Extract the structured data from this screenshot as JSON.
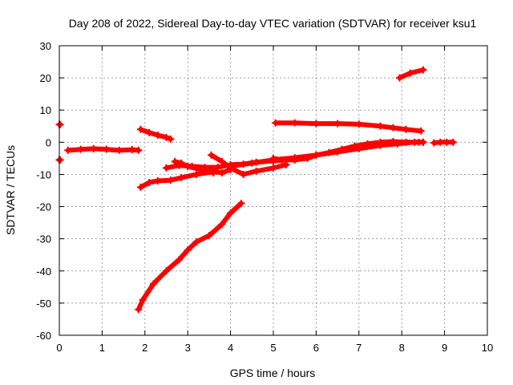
{
  "chart_data": {
    "type": "scatter",
    "title": "Day 208 of 2022, Sidereal Day-to-day VTEC variation (SDTVAR) for receiver ksu1",
    "xlabel": "GPS time / hours",
    "ylabel": "SDTVAR / TECUs",
    "xlim": [
      0,
      10
    ],
    "ylim": [
      -60,
      30
    ],
    "x_ticks": [
      "0",
      "1",
      "2",
      "3",
      "4",
      "5",
      "6",
      "7",
      "8",
      "9",
      "10"
    ],
    "y_ticks": [
      "-60",
      "-50",
      "-40",
      "-30",
      "-20",
      "-10",
      "0",
      "10",
      "20",
      "30"
    ],
    "grid": true,
    "marker": "plus",
    "color": "#ff0000",
    "series": [
      {
        "x": [
          0.0,
          0.02
        ],
        "y": [
          5.5,
          5.5
        ]
      },
      {
        "x": [
          0.0,
          0.02
        ],
        "y": [
          -5.5,
          -5.5
        ]
      },
      {
        "x": [
          0.2,
          0.5,
          0.8,
          1.1,
          1.4,
          1.7,
          1.85
        ],
        "y": [
          -2.5,
          -2.2,
          -2.0,
          -2.2,
          -2.5,
          -2.3,
          -2.5
        ]
      },
      {
        "x": [
          1.9,
          2.1,
          2.3,
          2.5,
          2.6
        ],
        "y": [
          4.0,
          3.0,
          2.2,
          1.5,
          1.0
        ]
      },
      {
        "x": [
          1.9,
          2.1,
          2.3,
          2.6,
          2.85,
          3.2,
          3.6,
          3.8,
          4.0
        ],
        "y": [
          -14.0,
          -12.5,
          -12.0,
          -11.8,
          -11.0,
          -10.0,
          -9.2,
          -9.5,
          -8.5
        ]
      },
      {
        "x": [
          1.85,
          1.95,
          2.2,
          2.5,
          2.8,
          3.0,
          3.2,
          3.5,
          3.8,
          4.0,
          4.25
        ],
        "y": [
          -52.0,
          -49.0,
          -44.0,
          -40.0,
          -36.5,
          -33.5,
          -31.0,
          -29.0,
          -25.5,
          -22.0,
          -19.0
        ]
      },
      {
        "x": [
          2.5,
          2.8,
          3.1,
          3.4,
          3.7,
          4.0,
          4.3,
          4.6,
          5.0,
          5.3
        ],
        "y": [
          -8.0,
          -7.2,
          -7.5,
          -7.8,
          -7.8,
          -7.0,
          -6.8,
          -6.2,
          -5.8,
          -5.5
        ]
      },
      {
        "x": [
          2.7,
          2.85,
          3.0,
          3.3,
          3.6
        ],
        "y": [
          -6.0,
          -6.5,
          -7.5,
          -8.5,
          -9.5
        ]
      },
      {
        "x": [
          3.55,
          3.8,
          4.0,
          4.3,
          4.6,
          5.0,
          5.3
        ],
        "y": [
          -4.0,
          -6.0,
          -8.0,
          -10.0,
          -9.0,
          -8.0,
          -7.0
        ]
      },
      {
        "x": [
          4.0,
          4.5,
          5.0,
          5.5,
          6.0,
          6.5,
          7.0,
          7.5,
          7.9,
          8.3,
          8.5
        ],
        "y": [
          -7.5,
          -6.5,
          -5.5,
          -4.8,
          -4.0,
          -3.0,
          -2.0,
          -1.0,
          -0.5,
          0.0,
          0.0
        ]
      },
      {
        "x": [
          5.0,
          5.2,
          5.5,
          5.8,
          6.0,
          6.3,
          6.6,
          6.9,
          7.2,
          7.5,
          7.8,
          8.1,
          8.4,
          8.5
        ],
        "y": [
          -5.0,
          -5.5,
          -5.5,
          -5.0,
          -4.0,
          -3.2,
          -2.2,
          -1.2,
          -0.5,
          0.0,
          0.2,
          0.0,
          0.0,
          0.0
        ]
      },
      {
        "x": [
          5.05,
          5.5,
          6.0,
          6.5,
          7.0,
          7.5,
          7.8,
          8.1,
          8.45
        ],
        "y": [
          6.0,
          6.0,
          5.8,
          5.8,
          5.6,
          5.0,
          4.5,
          4.0,
          3.5
        ]
      },
      {
        "x": [
          7.95,
          8.2,
          8.5
        ],
        "y": [
          20.0,
          21.5,
          22.5
        ]
      },
      {
        "x": [
          8.75,
          8.9,
          9.05,
          9.2
        ],
        "y": [
          -0.2,
          0.0,
          0.0,
          0.0
        ]
      }
    ]
  }
}
